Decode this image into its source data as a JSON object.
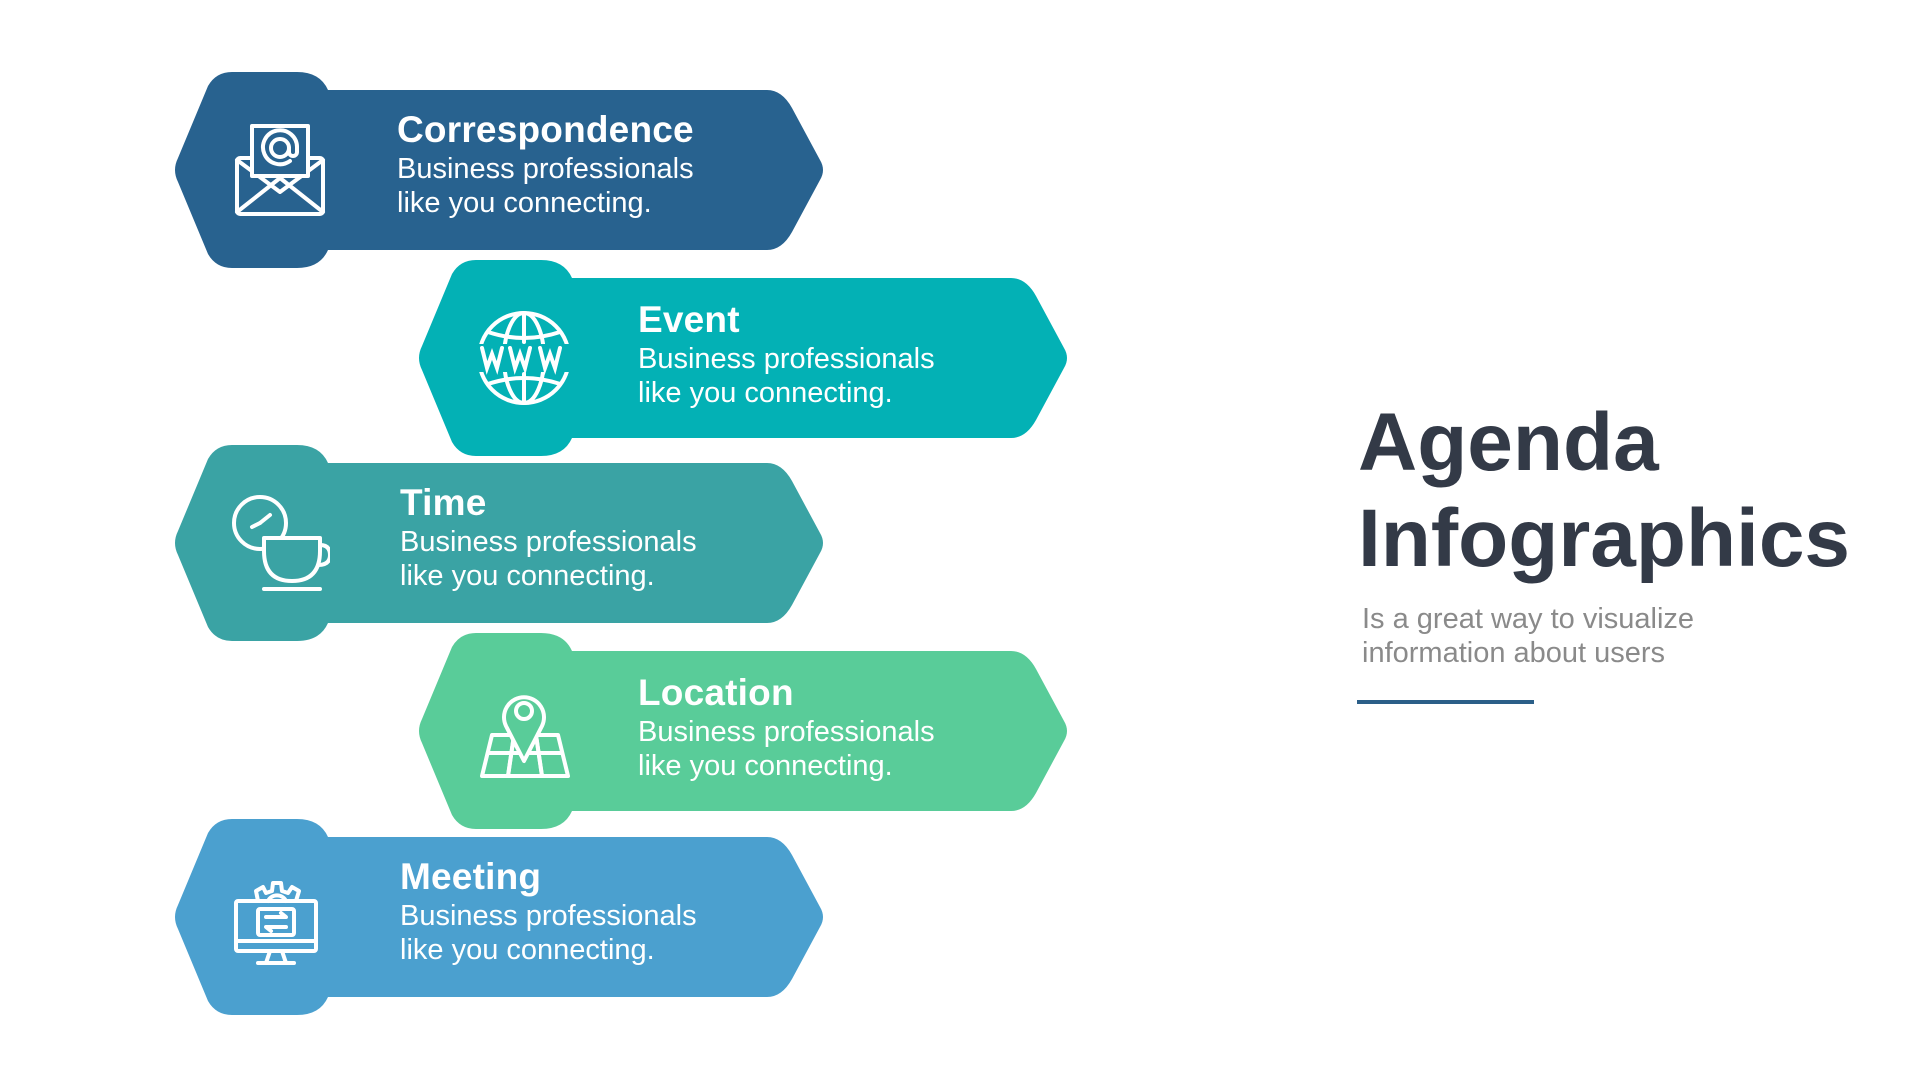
{
  "title_line1": "Agenda",
  "title_line2": "Infographics",
  "subtitle_line1": "Is a great way to visualize",
  "subtitle_line2": "information about users",
  "accent_line_color": "#2b5f88",
  "items": [
    {
      "title": "Correspondence",
      "desc_line1": "Business professionals",
      "desc_line2": "like you connecting.",
      "icon": "envelope-at-icon",
      "color": "#28628f"
    },
    {
      "title": "Event",
      "desc_line1": "Business professionals",
      "desc_line2": "like you connecting.",
      "icon": "globe-www-icon",
      "color": "#03b1b5"
    },
    {
      "title": "Time",
      "desc_line1": "Business professionals",
      "desc_line2": "like you connecting.",
      "icon": "clock-cup-icon",
      "color": "#3aa3a4"
    },
    {
      "title": "Location",
      "desc_line1": "Business professionals",
      "desc_line2": "like you connecting.",
      "icon": "map-pin-icon",
      "color": "#59cc99"
    },
    {
      "title": "Meeting",
      "desc_line1": "Business professionals",
      "desc_line2": "like you connecting.",
      "icon": "monitor-gear-icon",
      "color": "#4ba0cf"
    }
  ]
}
